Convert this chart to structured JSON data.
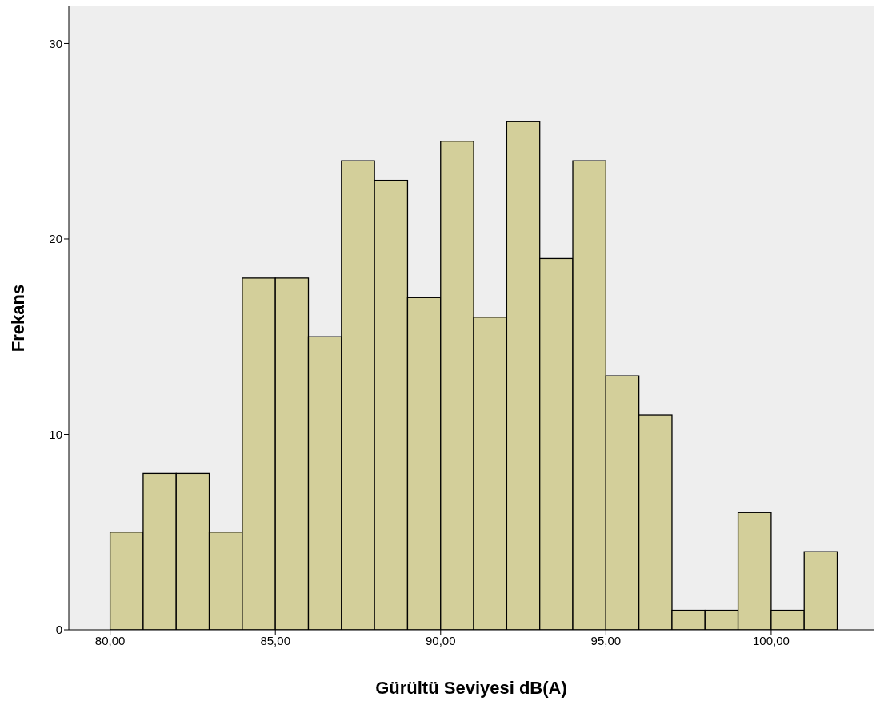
{
  "chart_data": {
    "type": "histogram",
    "xlabel": "Gürültü Seviyesi dB(A)",
    "ylabel": "Frekans",
    "bins": [
      80,
      81,
      82,
      83,
      84,
      85,
      86,
      87,
      88,
      89,
      90,
      91,
      92,
      93,
      94,
      95,
      96,
      97,
      98,
      99,
      100,
      101,
      102
    ],
    "values": [
      5,
      8,
      8,
      5,
      18,
      18,
      15,
      24,
      23,
      17,
      25,
      16,
      26,
      19,
      24,
      13,
      11,
      1,
      1,
      6,
      1,
      4
    ],
    "color": "#d3cf9a",
    "xlim": [
      78.75,
      103.1
    ],
    "ylim": [
      0,
      31.9
    ],
    "xticks": [
      {
        "value": 80,
        "label": "80,00"
      },
      {
        "value": 85,
        "label": "85,00"
      },
      {
        "value": 90,
        "label": "90,00"
      },
      {
        "value": 95,
        "label": "95,00"
      },
      {
        "value": 100,
        "label": "100,00"
      }
    ],
    "yticks": [
      0,
      10,
      20,
      30
    ]
  }
}
